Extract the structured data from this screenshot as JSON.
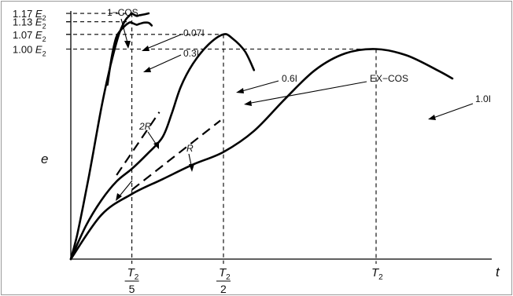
{
  "chart_data": {
    "type": "line",
    "title": "",
    "xlabel": "t",
    "ylabel": "e",
    "grid": false,
    "legend": "none",
    "y_tick_labels": [
      {
        "label": "1.17 E₂",
        "prefix": "1.17",
        "var": "E",
        "sub": "2",
        "value": 1.17
      },
      {
        "label": "1.13 E₂",
        "prefix": "1.13",
        "var": "E",
        "sub": "2",
        "value": 1.13
      },
      {
        "label": "1.07 E₂",
        "prefix": "1.07",
        "var": "E",
        "sub": "2",
        "value": 1.07
      },
      {
        "label": "1.00 E₂",
        "prefix": "1.00",
        "var": "E",
        "sub": "2",
        "value": 1.0
      }
    ],
    "x_tick_labels": [
      {
        "label": "T₂/5",
        "num": "T",
        "sub": "2",
        "den": "5",
        "value": 0.2
      },
      {
        "label": "T₂/2",
        "num": "T",
        "sub": "2",
        "den": "2",
        "value": 0.5
      },
      {
        "label": "T₂",
        "num": "T",
        "sub": "2",
        "den": "",
        "value": 1.0
      }
    ],
    "series": [
      {
        "name": "1−COS",
        "points": [
          [
            0,
            0
          ],
          [
            0.02,
            0.11
          ],
          [
            0.04,
            0.25
          ],
          [
            0.06,
            0.4
          ],
          [
            0.08,
            0.56
          ],
          [
            0.1,
            0.72
          ],
          [
            0.12,
            0.86
          ],
          [
            0.14,
            0.98
          ],
          [
            0.16,
            1.08
          ],
          [
            0.18,
            1.14
          ],
          [
            0.2,
            1.17
          ]
        ]
      },
      {
        "name": "0.07I",
        "points": [
          [
            0.2,
            1.17
          ],
          [
            0.215,
            1.158
          ],
          [
            0.225,
            1.161
          ],
          [
            0.24,
            1.165
          ],
          [
            0.255,
            1.17
          ]
        ]
      },
      {
        "name": "0.3I",
        "points": [
          [
            0.12,
            0.83
          ],
          [
            0.135,
            0.97
          ],
          [
            0.15,
            1.06
          ],
          [
            0.17,
            1.1
          ],
          [
            0.19,
            1.125
          ],
          [
            0.2,
            1.125
          ],
          [
            0.215,
            1.116
          ],
          [
            0.225,
            1.12
          ],
          [
            0.24,
            1.126
          ],
          [
            0.255,
            1.125
          ],
          [
            0.265,
            1.112
          ]
        ]
      },
      {
        "name": "0.6I",
        "points": [
          [
            0.0,
            0.0
          ],
          [
            0.05,
            0.16
          ],
          [
            0.1,
            0.28
          ],
          [
            0.15,
            0.37
          ],
          [
            0.2,
            0.43
          ],
          [
            0.25,
            0.5
          ],
          [
            0.3,
            0.58
          ],
          [
            0.33,
            0.69
          ],
          [
            0.36,
            0.82
          ],
          [
            0.4,
            0.93
          ],
          [
            0.45,
            1.02
          ],
          [
            0.5,
            1.07
          ],
          [
            0.53,
            1.05
          ],
          [
            0.57,
            0.99
          ],
          [
            0.6,
            0.9
          ]
        ]
      },
      {
        "name": "1.0I",
        "points": [
          [
            0.0,
            0.0
          ],
          [
            0.1,
            0.21
          ],
          [
            0.2,
            0.31
          ],
          [
            0.3,
            0.38
          ],
          [
            0.4,
            0.45
          ],
          [
            0.5,
            0.51
          ],
          [
            0.6,
            0.61
          ],
          [
            0.7,
            0.76
          ],
          [
            0.8,
            0.9
          ],
          [
            0.9,
            0.98
          ],
          [
            1.0,
            1.0
          ],
          [
            1.1,
            0.97
          ],
          [
            1.2,
            0.9
          ],
          [
            1.25,
            0.86
          ]
        ]
      }
    ],
    "dashed_lines": [
      {
        "label": "2R",
        "points": [
          [
            0.15,
            0.4
          ],
          [
            0.29,
            0.7
          ]
        ]
      },
      {
        "label": "R",
        "points": [
          [
            0.2,
            0.33
          ],
          [
            0.49,
            0.66
          ]
        ]
      }
    ],
    "annotations": [
      {
        "text": "1−COS",
        "target": "1−COS"
      },
      {
        "text": "0.07I",
        "target": "0.07I"
      },
      {
        "text": "0.3I",
        "target": "0.3I"
      },
      {
        "text": "0.6I",
        "target": "0.6I"
      },
      {
        "text": "EX−COS",
        "target": "0.6I"
      },
      {
        "text": "1.0I",
        "target": "1.0I"
      },
      {
        "text": "2R",
        "target": "2R"
      },
      {
        "text": "R",
        "target": "R"
      }
    ]
  }
}
